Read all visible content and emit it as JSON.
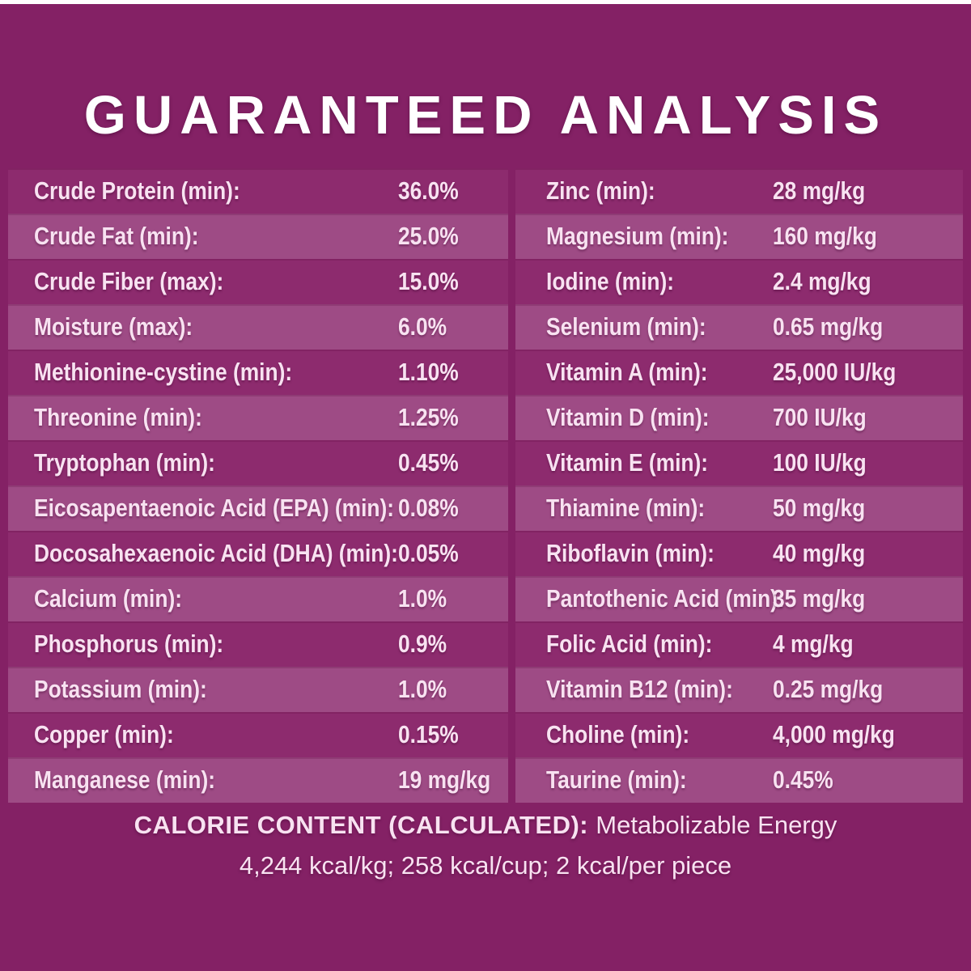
{
  "title": "GUARANTEED ANALYSIS",
  "colors": {
    "background": "#842165",
    "row_dark": "#8d2b6e",
    "row_light": "#9e4b85",
    "text": "#f8e2f1",
    "title_text": "#ffffff"
  },
  "table": {
    "left_column": [
      {
        "label": "Crude Protein (min):",
        "value": "36.0%"
      },
      {
        "label": "Crude Fat (min):",
        "value": "25.0%"
      },
      {
        "label": "Crude Fiber (max):",
        "value": "15.0%"
      },
      {
        "label": "Moisture (max):",
        "value": "6.0%"
      },
      {
        "label": "Methionine-cystine (min):",
        "value": "1.10%"
      },
      {
        "label": "Threonine (min):",
        "value": "1.25%"
      },
      {
        "label": "Tryptophan (min):",
        "value": "0.45%"
      },
      {
        "label": "Eicosapentaenoic Acid (EPA) (min):",
        "value": "0.08%"
      },
      {
        "label": "Docosahexaenoic Acid (DHA) (min):",
        "value": "0.05%"
      },
      {
        "label": "Calcium (min):",
        "value": "1.0%"
      },
      {
        "label": "Phosphorus (min):",
        "value": "0.9%"
      },
      {
        "label": "Potassium (min):",
        "value": "1.0%"
      },
      {
        "label": "Copper (min):",
        "value": "0.15%"
      },
      {
        "label": "Manganese (min):",
        "value": "19 mg/kg"
      }
    ],
    "right_column": [
      {
        "label": "Zinc (min):",
        "value": "28 mg/kg"
      },
      {
        "label": "Magnesium (min):",
        "value": "160 mg/kg"
      },
      {
        "label": "Iodine (min):",
        "value": "2.4 mg/kg"
      },
      {
        "label": "Selenium (min):",
        "value": "0.65 mg/kg"
      },
      {
        "label": "Vitamin A (min):",
        "value": "25,000 IU/kg"
      },
      {
        "label": "Vitamin D (min):",
        "value": "700 IU/kg"
      },
      {
        "label": "Vitamin E (min):",
        "value": "100 IU/kg"
      },
      {
        "label": "Thiamine (min):",
        "value": "50 mg/kg"
      },
      {
        "label": "Riboflavin (min):",
        "value": "40 mg/kg"
      },
      {
        "label": "Pantothenic Acid (min):",
        "value": "35 mg/kg"
      },
      {
        "label": "Folic Acid (min):",
        "value": "4 mg/kg"
      },
      {
        "label": "Vitamin B12 (min):",
        "value": "0.25 mg/kg"
      },
      {
        "label": "Choline (min):",
        "value": "4,000 mg/kg"
      },
      {
        "label": "Taurine (min):",
        "value": "0.45%"
      }
    ]
  },
  "footer": {
    "heading": "CALORIE CONTENT (CALCULATED):",
    "subheading": "Metabolizable Energy",
    "line2": "4,244 kcal/kg; 258 kcal/cup; 2 kcal/per piece"
  }
}
